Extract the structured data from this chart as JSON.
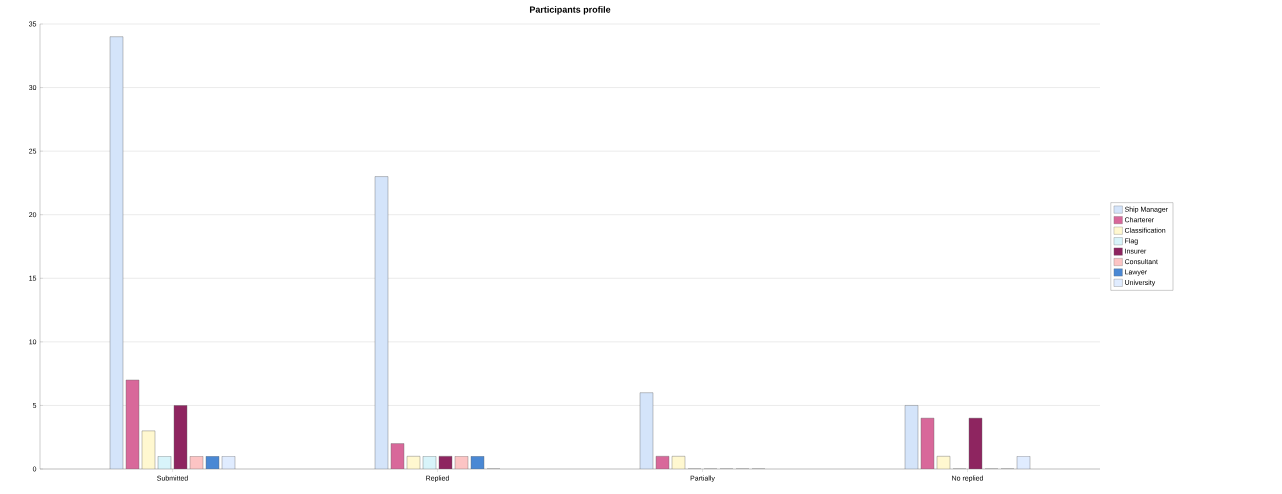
{
  "chart_data": {
    "type": "bar",
    "title": "Participants profile",
    "categories": [
      "Submitted",
      "Replied",
      "Partially",
      "No replied"
    ],
    "series": [
      {
        "name": "Ship Manager",
        "color": "#d4e4fa",
        "values": [
          34,
          23,
          6,
          5
        ]
      },
      {
        "name": "Charterer",
        "color": "#d8689a",
        "values": [
          7,
          2,
          1,
          4
        ]
      },
      {
        "name": "Classification",
        "color": "#fff8d0",
        "values": [
          3,
          1,
          1,
          1
        ]
      },
      {
        "name": "Flag",
        "color": "#d8f4fa",
        "values": [
          1,
          1,
          0,
          0
        ]
      },
      {
        "name": "Insurer",
        "color": "#8e2560",
        "values": [
          5,
          1,
          0,
          4
        ]
      },
      {
        "name": "Consultant",
        "color": "#fcc4c4",
        "values": [
          1,
          1,
          0,
          0
        ]
      },
      {
        "name": "Lawyer",
        "color": "#4a88d4",
        "values": [
          1,
          1,
          0,
          0
        ]
      },
      {
        "name": "University",
        "color": "#e0ecff",
        "values": [
          1,
          0,
          0,
          1
        ]
      }
    ],
    "ylim": [
      0,
      35
    ],
    "yticks": [
      0,
      5,
      10,
      15,
      20,
      25,
      30,
      35
    ],
    "grid": "y",
    "legend": "right"
  }
}
